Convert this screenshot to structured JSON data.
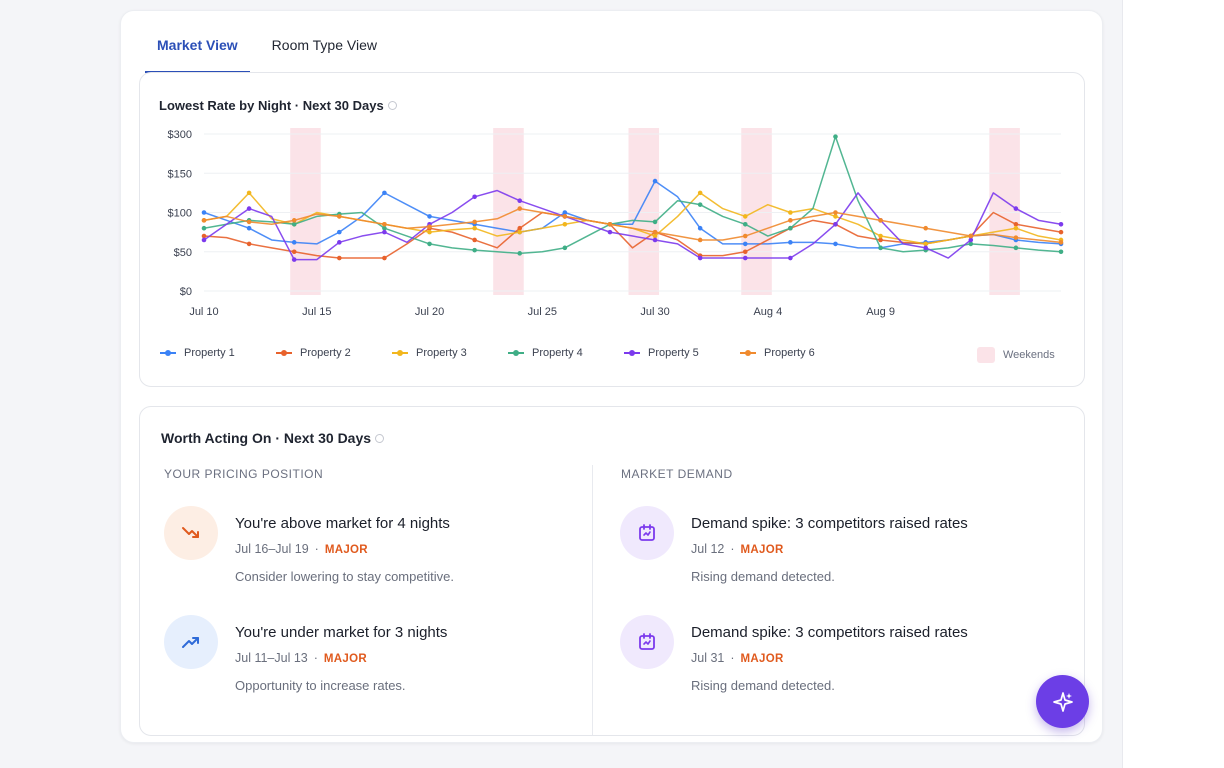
{
  "tabs": [
    {
      "label": "Market View",
      "active": true
    },
    {
      "label": "Room Type View",
      "active": false
    }
  ],
  "chart": {
    "title": "Lowest Rate by Night · Next 30 Days",
    "y_tick_labels": [
      "$300",
      "$150",
      "$100",
      "$50",
      "$0"
    ],
    "x_tick_labels": [
      "Jul 10",
      "Jul 15",
      "Jul 20",
      "Jul 25",
      "Jul 30",
      "Aug 4",
      "Aug 9"
    ],
    "weekends_label": "Weekends"
  },
  "chart_data": {
    "type": "line",
    "title": "Lowest Rate by Night · Next 30 Days",
    "xlabel": "",
    "ylabel": "",
    "y_ticks": [
      "$0",
      "$50",
      "$100",
      "$150",
      "$300"
    ],
    "x": [
      "Jul 10",
      "Jul 11",
      "Jul 12",
      "Jul 13",
      "Jul 14",
      "Jul 15",
      "Jul 16",
      "Jul 17",
      "Jul 18",
      "Jul 19",
      "Jul 20",
      "Jul 21",
      "Jul 22",
      "Jul 23",
      "Jul 24",
      "Jul 25",
      "Jul 26",
      "Jul 27",
      "Jul 28",
      "Jul 29",
      "Jul 30",
      "Jul 31",
      "Aug 1",
      "Aug 2",
      "Aug 3",
      "Aug 4",
      "Aug 5",
      "Aug 6",
      "Aug 7",
      "Aug 8",
      "Aug 9",
      "Aug 10",
      "Aug 11",
      "Aug 12",
      "Aug 13",
      "Aug 14",
      "Aug 15",
      "Aug 16",
      "Aug 17"
    ],
    "weekend_bands": [
      [
        "Jul 14",
        "Jul 15"
      ],
      [
        "Jul 23",
        "Jul 24"
      ],
      [
        "Jul 29",
        "Jul 30"
      ],
      [
        "Aug 3",
        "Aug 4"
      ],
      [
        "Aug 14",
        "Aug 15"
      ]
    ],
    "legend_position": "bottom",
    "grid": true,
    "series": [
      {
        "name": "Property 1",
        "color": "#3b82f6",
        "values": [
          100,
          90,
          80,
          65,
          62,
          60,
          75,
          95,
          125,
          110,
          95,
          90,
          85,
          80,
          75,
          80,
          100,
          90,
          85,
          85,
          140,
          120,
          80,
          60,
          60,
          60,
          62,
          62,
          60,
          55,
          55,
          60,
          62,
          65,
          70,
          72,
          65,
          62,
          60
        ]
      },
      {
        "name": "Property 2",
        "color": "#e8622c",
        "values": [
          70,
          68,
          60,
          55,
          50,
          45,
          42,
          42,
          42,
          60,
          80,
          75,
          65,
          55,
          80,
          100,
          95,
          90,
          85,
          55,
          75,
          65,
          45,
          45,
          50,
          65,
          80,
          90,
          85,
          70,
          65,
          62,
          60,
          65,
          70,
          100,
          85,
          80,
          75
        ]
      },
      {
        "name": "Property 3",
        "color": "#f2b61d",
        "values": [
          90,
          95,
          125,
          92,
          85,
          100,
          95,
          90,
          85,
          80,
          75,
          78,
          80,
          70,
          75,
          80,
          85,
          90,
          85,
          80,
          70,
          95,
          125,
          105,
          95,
          110,
          100,
          105,
          95,
          85,
          70,
          65,
          60,
          65,
          70,
          75,
          80,
          70,
          65
        ]
      },
      {
        "name": "Property 4",
        "color": "#3fae86",
        "values": [
          80,
          85,
          90,
          88,
          85,
          95,
          98,
          100,
          80,
          70,
          60,
          55,
          52,
          50,
          48,
          50,
          55,
          70,
          85,
          90,
          88,
          115,
          110,
          95,
          85,
          70,
          80,
          105,
          290,
          115,
          55,
          50,
          52,
          55,
          60,
          58,
          55,
          52,
          50
        ]
      },
      {
        "name": "Property 5",
        "color": "#7c3aed",
        "values": [
          65,
          85,
          105,
          95,
          40,
          40,
          62,
          70,
          75,
          62,
          85,
          100,
          120,
          128,
          115,
          105,
          95,
          85,
          75,
          70,
          65,
          60,
          42,
          42,
          42,
          42,
          42,
          60,
          85,
          125,
          90,
          60,
          55,
          42,
          65,
          125,
          105,
          90,
          85
        ]
      },
      {
        "name": "Property 6",
        "color": "#f08a2e",
        "values": [
          90,
          95,
          88,
          85,
          90,
          98,
          95,
          90,
          85,
          80,
          82,
          85,
          88,
          92,
          105,
          100,
          95,
          90,
          85,
          80,
          75,
          70,
          65,
          65,
          70,
          80,
          90,
          95,
          100,
          95,
          90,
          85,
          80,
          75,
          70,
          72,
          68,
          65,
          62
        ]
      }
    ]
  },
  "legend": [
    {
      "name": "Property 1",
      "color": "#3b82f6"
    },
    {
      "name": "Property 2",
      "color": "#e8622c"
    },
    {
      "name": "Property 3",
      "color": "#f2b61d"
    },
    {
      "name": "Property 4",
      "color": "#3fae86"
    },
    {
      "name": "Property 5",
      "color": "#7c3aed"
    },
    {
      "name": "Property 6",
      "color": "#f08a2e"
    }
  ],
  "actions": {
    "title": "Worth Acting On · Next 30 Days",
    "pricing": {
      "heading": "YOUR PRICING POSITION",
      "items": [
        {
          "title": "You're above market for 4 nights",
          "dates": "Jul 16–Jul 19",
          "severity": "MAJOR",
          "desc": "Consider lowering to stay competitive.",
          "icon": "trend-down-icon",
          "icon_bg": "#fdeee4",
          "icon_color": "#e05a1e"
        },
        {
          "title": "You're under market for 3 nights",
          "dates": "Jul 11–Jul 13",
          "severity": "MAJOR",
          "desc": "Opportunity to increase rates.",
          "icon": "trend-up-icon",
          "icon_bg": "#e6effd",
          "icon_color": "#2f6bd8"
        }
      ]
    },
    "demand": {
      "heading": "MARKET DEMAND",
      "items": [
        {
          "title": "Demand spike: 3 competitors raised rates",
          "dates": "Jul 12",
          "severity": "MAJOR",
          "desc": "Rising demand detected.",
          "icon": "calendar-icon",
          "icon_bg": "#f0e9fd",
          "icon_color": "#7c3aed"
        },
        {
          "title": "Demand spike: 3 competitors raised rates",
          "dates": "Jul 31",
          "severity": "MAJOR",
          "desc": "Rising demand detected.",
          "icon": "calendar-icon",
          "icon_bg": "#f0e9fd",
          "icon_color": "#7c3aed"
        }
      ]
    }
  },
  "colors": {
    "accent": "#2b4fb7",
    "fab": "#6c3ee6",
    "major": "#e05a1e",
    "weekend": "#fbe3e8"
  },
  "fab_icon": "sparkle-icon"
}
